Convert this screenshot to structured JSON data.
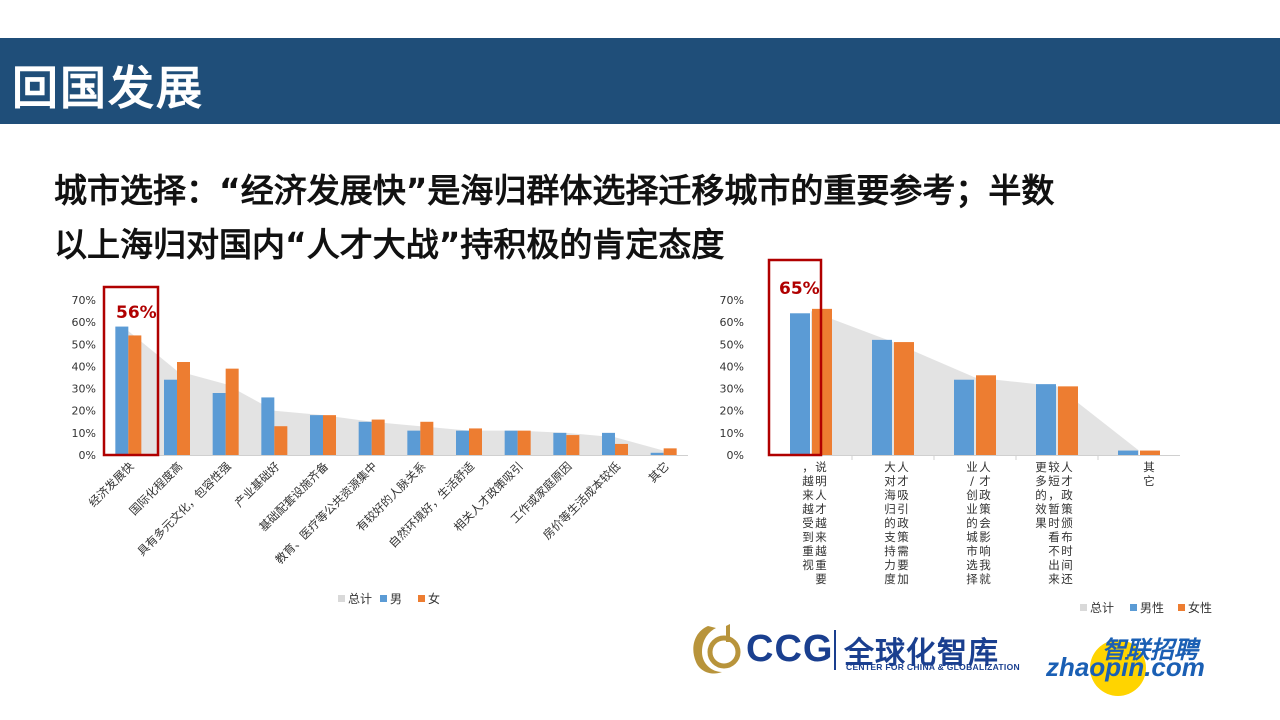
{
  "slide": {
    "title": "回国发展",
    "headline_line1": "城市选择：“经济发展快”是海归群体选择迁移城市的重要参考；半数",
    "headline_line2": "以上海归对国内“人才大战”持积极的肯定态度"
  },
  "colors": {
    "header_bg": "#1f4e79",
    "series_total": "#d9d9d9",
    "series_male": "#5b9bd5",
    "series_female": "#ed7d31",
    "highlight": "#b00000"
  },
  "chart_data": [
    {
      "type": "bar",
      "highlight_label": "56%",
      "ylim": [
        0,
        70
      ],
      "yticks": [
        "0%",
        "10%",
        "20%",
        "30%",
        "40%",
        "50%",
        "60%",
        "70%"
      ],
      "categories": [
        "经济发展快",
        "国际化程度高",
        "具有多元文化，包容性强",
        "产业基础好",
        "基础配套设施齐备",
        "教育、医疗等公共资源集中",
        "有较好的人脉关系",
        "自然环境好，生活舒适",
        "相关人才政策吸引",
        "工作或家庭原因",
        "房价等生活成本较低",
        "其它"
      ],
      "series": [
        {
          "name": "总计",
          "type": "area",
          "values": [
            56,
            38,
            32,
            20,
            18,
            15,
            13,
            11,
            11,
            10,
            8,
            2
          ]
        },
        {
          "name": "男",
          "type": "bar",
          "values": [
            58,
            34,
            28,
            26,
            18,
            15,
            11,
            11,
            11,
            10,
            10,
            1
          ]
        },
        {
          "name": "女",
          "type": "bar",
          "values": [
            54,
            42,
            39,
            13,
            18,
            16,
            15,
            12,
            11,
            9,
            5,
            3
          ]
        }
      ],
      "legend": [
        "总计",
        "男",
        "女"
      ],
      "legend_position": "bottom"
    },
    {
      "type": "bar",
      "highlight_label": "65%",
      "ylim": [
        0,
        70
      ],
      "yticks": [
        "0%",
        "10%",
        "20%",
        "30%",
        "40%",
        "50%",
        "60%",
        "70%"
      ],
      "categories": [
        "说明人才越来越重要，越来越受到重视",
        "人才吸引政策需要加大对海归的支持力度",
        "人才政策会影响我就业/创业的城市选择",
        "人才政策颁布时间还较短，暂时看不出来更多的效果",
        "其它"
      ],
      "series": [
        {
          "name": "总计",
          "type": "area",
          "values": [
            65,
            51,
            35,
            31,
            2
          ]
        },
        {
          "name": "男性",
          "type": "bar",
          "values": [
            64,
            52,
            34,
            32,
            2
          ]
        },
        {
          "name": "女性",
          "type": "bar",
          "values": [
            66,
            51,
            36,
            31,
            2
          ]
        }
      ],
      "legend": [
        "总计",
        "男性",
        "女性"
      ],
      "legend_position": "bottom"
    }
  ],
  "logos": {
    "ccg_text": "CCG",
    "ccg_cn": "全球化智库",
    "ccg_en": "CENTER FOR CHINA & GLOBALIZATION",
    "zhaopin_cn": "智联招聘",
    "zhaopin_en": "zhaopin.com"
  }
}
